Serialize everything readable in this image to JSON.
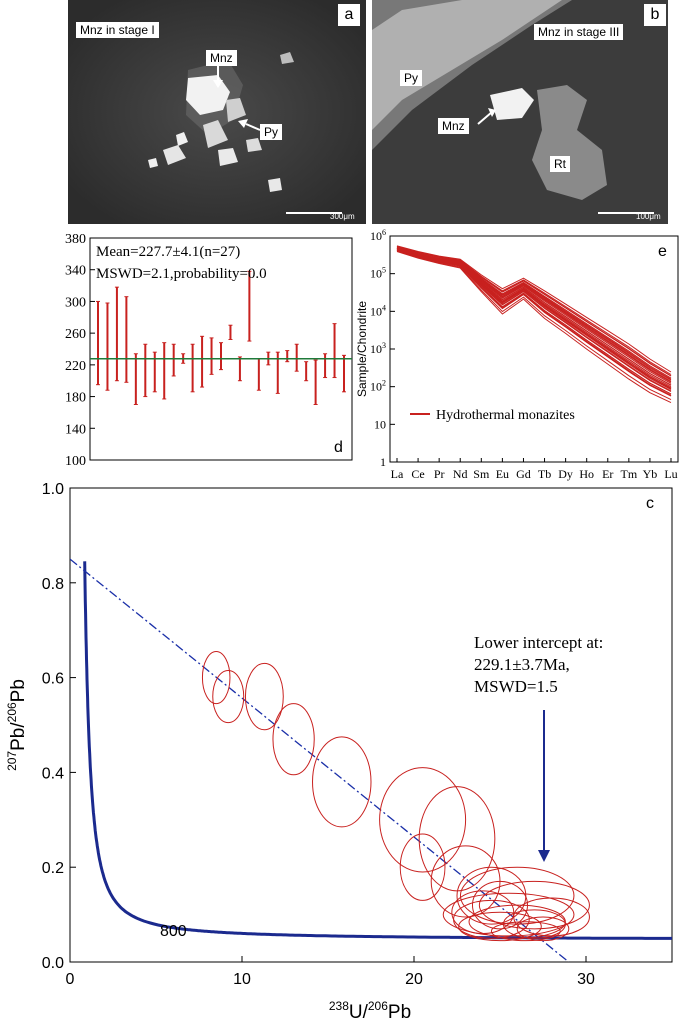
{
  "panel_a": {
    "letter": "a",
    "title": "Mnz in stage I",
    "label_mnz": "Mnz",
    "label_py": "Py",
    "scale": "300μm"
  },
  "panel_b": {
    "letter": "b",
    "title": "Mnz in stage III",
    "label_py": "Py",
    "label_mnz": "Mnz",
    "label_rt": "Rt",
    "scale": "100μm"
  },
  "chart_data": [
    {
      "panel": "d",
      "type": "error-bar",
      "annotation_line1": "Mean=227.7±4.1(n=27)",
      "annotation_line2": "MSWD=2.1,probability=0.0",
      "mean": 227.7,
      "ylim": [
        100,
        380
      ],
      "yticks": [
        "100",
        "140",
        "180",
        "220",
        "260",
        "300",
        "340",
        "380"
      ],
      "analyses": [
        {
          "low": 195,
          "high": 300
        },
        {
          "low": 188,
          "high": 298
        },
        {
          "low": 200,
          "high": 318
        },
        {
          "low": 198,
          "high": 306
        },
        {
          "low": 170,
          "high": 234
        },
        {
          "low": 180,
          "high": 246
        },
        {
          "low": 186,
          "high": 236
        },
        {
          "low": 177,
          "high": 248
        },
        {
          "low": 206,
          "high": 246
        },
        {
          "low": 222,
          "high": 234
        },
        {
          "low": 186,
          "high": 246
        },
        {
          "low": 192,
          "high": 256
        },
        {
          "low": 208,
          "high": 254
        },
        {
          "low": 214,
          "high": 248
        },
        {
          "low": 252,
          "high": 270
        },
        {
          "low": 200,
          "high": 230
        },
        {
          "low": 250,
          "high": 338
        },
        {
          "low": 188,
          "high": 228
        },
        {
          "low": 220,
          "high": 236
        },
        {
          "low": 184,
          "high": 236
        },
        {
          "low": 224,
          "high": 238
        },
        {
          "low": 212,
          "high": 246
        },
        {
          "low": 200,
          "high": 224
        },
        {
          "low": 170,
          "high": 226
        },
        {
          "low": 204,
          "high": 234
        },
        {
          "low": 204,
          "high": 272
        },
        {
          "low": 186,
          "high": 232
        }
      ]
    },
    {
      "panel": "e",
      "type": "line",
      "ylabel": "Sample/Chondrite",
      "yscale": "log",
      "ylim": [
        1,
        1000000
      ],
      "categories": [
        "La",
        "Ce",
        "Pr",
        "Nd",
        "Sm",
        "Eu",
        "Gd",
        "Tb",
        "Dy",
        "Ho",
        "Er",
        "Tm",
        "Yb",
        "Lu"
      ],
      "legend": "Hydrothermal monazites",
      "series_log10_min": [
        5.58,
        5.4,
        5.26,
        5.14,
        4.5,
        3.9,
        4.3,
        3.78,
        3.38,
        2.96,
        2.56,
        2.16,
        1.8,
        1.54
      ],
      "series_log10_max": [
        5.75,
        5.6,
        5.48,
        5.4,
        5.0,
        4.65,
        4.92,
        4.6,
        4.25,
        3.9,
        3.55,
        3.2,
        2.8,
        2.45
      ],
      "series_count": 27
    },
    {
      "panel": "c",
      "type": "concordia",
      "xlabel_iso": "238",
      "xlabel_elem": "U/",
      "xlabel_iso2": "206",
      "xlabel_elem2": "Pb",
      "ylabel_iso": "207",
      "ylabel_elem": "Pb/",
      "ylabel_iso2": "206",
      "ylabel_elem2": "Pb",
      "xlim": [
        0,
        35
      ],
      "ylim": [
        0.0,
        1.0
      ],
      "xticks": [
        "0",
        "10",
        "20",
        "30"
      ],
      "yticks": [
        "0.0",
        "0.2",
        "0.4",
        "0.6",
        "0.8",
        "1.0"
      ],
      "concordia_age_label": "800",
      "intercept_line1": "Lower intercept at:",
      "intercept_line2": "229.1±3.7Ma,",
      "intercept_line3": "MSWD=1.5",
      "regression": {
        "y_at_x0": 0.85,
        "x_at_y0": 29.0
      },
      "ellipses": [
        {
          "x": 8.5,
          "y": 0.6,
          "rx": 0.8,
          "ry": 0.055
        },
        {
          "x": 9.2,
          "y": 0.56,
          "rx": 0.9,
          "ry": 0.055
        },
        {
          "x": 11.3,
          "y": 0.56,
          "rx": 1.1,
          "ry": 0.07
        },
        {
          "x": 13.0,
          "y": 0.47,
          "rx": 1.2,
          "ry": 0.075
        },
        {
          "x": 15.8,
          "y": 0.38,
          "rx": 1.7,
          "ry": 0.095
        },
        {
          "x": 20.5,
          "y": 0.3,
          "rx": 2.5,
          "ry": 0.11
        },
        {
          "x": 22.5,
          "y": 0.26,
          "rx": 2.2,
          "ry": 0.11
        },
        {
          "x": 20.5,
          "y": 0.2,
          "rx": 1.3,
          "ry": 0.07
        },
        {
          "x": 23.0,
          "y": 0.17,
          "rx": 2.0,
          "ry": 0.075
        },
        {
          "x": 24.5,
          "y": 0.14,
          "rx": 2.0,
          "ry": 0.06
        },
        {
          "x": 26.0,
          "y": 0.14,
          "rx": 3.3,
          "ry": 0.06
        },
        {
          "x": 27.0,
          "y": 0.12,
          "rx": 3.2,
          "ry": 0.05
        },
        {
          "x": 25.0,
          "y": 0.12,
          "rx": 1.6,
          "ry": 0.05
        },
        {
          "x": 25.5,
          "y": 0.1,
          "rx": 3.8,
          "ry": 0.045
        },
        {
          "x": 24.5,
          "y": 0.09,
          "rx": 2.2,
          "ry": 0.04
        },
        {
          "x": 26.0,
          "y": 0.085,
          "rx": 2.8,
          "ry": 0.035
        },
        {
          "x": 27.0,
          "y": 0.08,
          "rx": 1.8,
          "ry": 0.03
        },
        {
          "x": 25.0,
          "y": 0.075,
          "rx": 2.4,
          "ry": 0.03
        },
        {
          "x": 27.5,
          "y": 0.07,
          "rx": 1.5,
          "ry": 0.025
        },
        {
          "x": 26.5,
          "y": 0.065,
          "rx": 2.0,
          "ry": 0.02
        },
        {
          "x": 24.0,
          "y": 0.105,
          "rx": 1.8,
          "ry": 0.045
        },
        {
          "x": 28.0,
          "y": 0.095,
          "rx": 2.2,
          "ry": 0.04
        }
      ]
    }
  ],
  "panel_letters": {
    "c": "c",
    "d": "d",
    "e": "e"
  },
  "colors": {
    "data": "#c8211f",
    "concordia": "#1b2a8e",
    "regression": "#1a2fa8",
    "mean": "#1f7a3a"
  }
}
